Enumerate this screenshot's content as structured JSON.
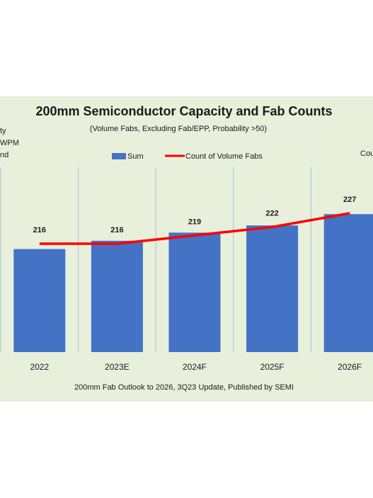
{
  "chart_data": {
    "type": "bar",
    "title": "200mm Semiconductor Capacity and Fab Counts",
    "subtitle": "(Volume Fabs, Excluding Fab/EPP, Probability >50)",
    "source": "200mm Fab Outlook to 2026, 3Q23 Update, Published by SEMI",
    "y_axis_left_fragments": [
      "ty",
      "WPM",
      "nd"
    ],
    "y_axis_right_fragment": "Cou",
    "categories": [
      "2022",
      "2023E",
      "2024F",
      "2025F",
      "2026F"
    ],
    "series": [
      {
        "name": "Sum",
        "kind": "bar",
        "color": "#4472c4",
        "relative_height": [
          0.557,
          0.602,
          0.646,
          0.685,
          0.746
        ]
      },
      {
        "name": "Count of Volume Fabs",
        "kind": "line",
        "color": "#ff0000",
        "values": [
          216,
          216,
          219,
          222,
          227
        ],
        "data_labels": [
          "216",
          "216",
          "219",
          "222",
          "227"
        ]
      }
    ],
    "legend": [
      "Sum",
      "Count of Volume Fabs"
    ],
    "legend_position": "top",
    "grid": "vertical separators"
  }
}
